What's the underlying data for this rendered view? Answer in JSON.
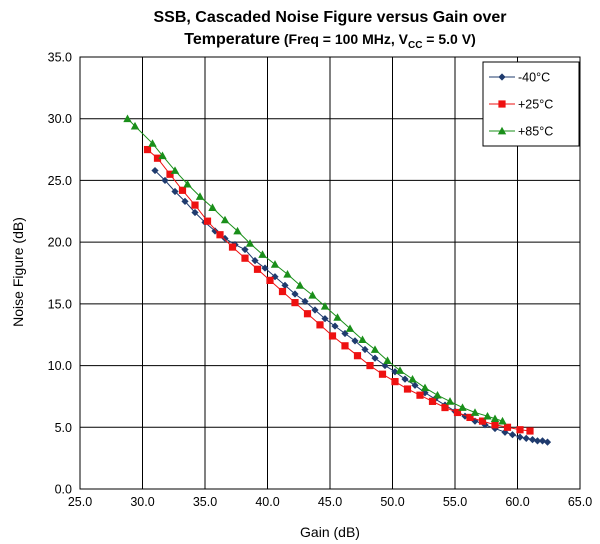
{
  "chart_data": {
    "type": "line",
    "title_line1": "SSB, Cascaded Noise Figure versus Gain over",
    "title_line2_main": "Temperature",
    "title_line2_cond_open": " (Freq = 100 MHz, V",
    "title_line2_cond_sub": "CC",
    "title_line2_cond_close": " = 5.0 V)",
    "xlabel": "Gain (dB)",
    "ylabel": "Noise Figure (dB)",
    "xlim": [
      25,
      65
    ],
    "ylim": [
      0,
      35
    ],
    "x_ticks": [
      "25.0",
      "30.0",
      "35.0",
      "40.0",
      "45.0",
      "50.0",
      "55.0",
      "60.0",
      "65.0"
    ],
    "y_ticks": [
      "0.0",
      "5.0",
      "10.0",
      "15.0",
      "20.0",
      "25.0",
      "30.0",
      "35.0"
    ],
    "grid": true,
    "legend_position": "top-right",
    "series": [
      {
        "name": "-40°C",
        "color": "#1f3b6e",
        "marker": "diamond",
        "x": [
          31.0,
          31.8,
          32.6,
          33.4,
          34.2,
          35.0,
          35.8,
          36.6,
          37.4,
          38.2,
          39.0,
          39.8,
          40.6,
          41.4,
          42.2,
          43.0,
          43.8,
          44.6,
          45.4,
          46.2,
          47.0,
          47.8,
          48.6,
          49.4,
          50.2,
          51.0,
          51.8,
          52.6,
          53.4,
          54.2,
          55.0,
          55.8,
          56.6,
          57.4,
          58.2,
          59.0,
          59.6,
          60.2,
          60.7,
          61.2,
          61.6,
          62.0,
          62.4
        ],
        "y": [
          25.8,
          25.0,
          24.1,
          23.3,
          22.4,
          21.6,
          20.9,
          20.3,
          19.8,
          19.4,
          18.5,
          17.9,
          17.2,
          16.5,
          15.8,
          15.2,
          14.5,
          13.8,
          13.2,
          12.6,
          12.0,
          11.3,
          10.6,
          10.0,
          9.5,
          8.9,
          8.4,
          7.8,
          7.3,
          6.8,
          6.3,
          5.9,
          5.5,
          5.2,
          4.9,
          4.6,
          4.4,
          4.2,
          4.1,
          4.0,
          3.9,
          3.9,
          3.8
        ]
      },
      {
        "name": "+25°C",
        "color": "#ee1111",
        "marker": "square",
        "x": [
          30.4,
          31.2,
          32.2,
          33.2,
          34.2,
          35.2,
          36.2,
          37.2,
          38.2,
          39.2,
          40.2,
          41.2,
          42.2,
          43.2,
          44.2,
          45.2,
          46.2,
          47.2,
          48.2,
          49.2,
          50.2,
          51.2,
          52.2,
          53.2,
          54.2,
          55.2,
          56.2,
          57.2,
          58.2,
          59.2,
          60.2,
          61.0
        ],
        "y": [
          27.5,
          26.8,
          25.5,
          24.2,
          23.0,
          21.7,
          20.6,
          19.6,
          18.7,
          17.8,
          16.9,
          16.0,
          15.1,
          14.2,
          13.3,
          12.4,
          11.6,
          10.8,
          10.0,
          9.3,
          8.7,
          8.1,
          7.6,
          7.1,
          6.6,
          6.2,
          5.8,
          5.5,
          5.2,
          5.0,
          4.8,
          4.7
        ]
      },
      {
        "name": "+85°C",
        "color": "#1a8f1a",
        "marker": "triangle",
        "x": [
          28.8,
          29.4,
          30.8,
          31.6,
          32.6,
          33.6,
          34.6,
          35.6,
          36.6,
          37.6,
          38.6,
          39.6,
          40.6,
          41.6,
          42.6,
          43.6,
          44.6,
          45.6,
          46.6,
          47.6,
          48.6,
          49.6,
          50.6,
          51.6,
          52.6,
          53.6,
          54.6,
          55.6,
          56.6,
          57.6,
          58.2,
          58.8
        ],
        "y": [
          30.0,
          29.4,
          28.0,
          27.0,
          25.8,
          24.7,
          23.7,
          22.8,
          21.8,
          20.9,
          19.9,
          19.0,
          18.2,
          17.4,
          16.5,
          15.7,
          14.8,
          13.9,
          13.0,
          12.1,
          11.3,
          10.4,
          9.6,
          8.9,
          8.2,
          7.6,
          7.1,
          6.6,
          6.2,
          5.9,
          5.7,
          5.5
        ]
      }
    ]
  }
}
